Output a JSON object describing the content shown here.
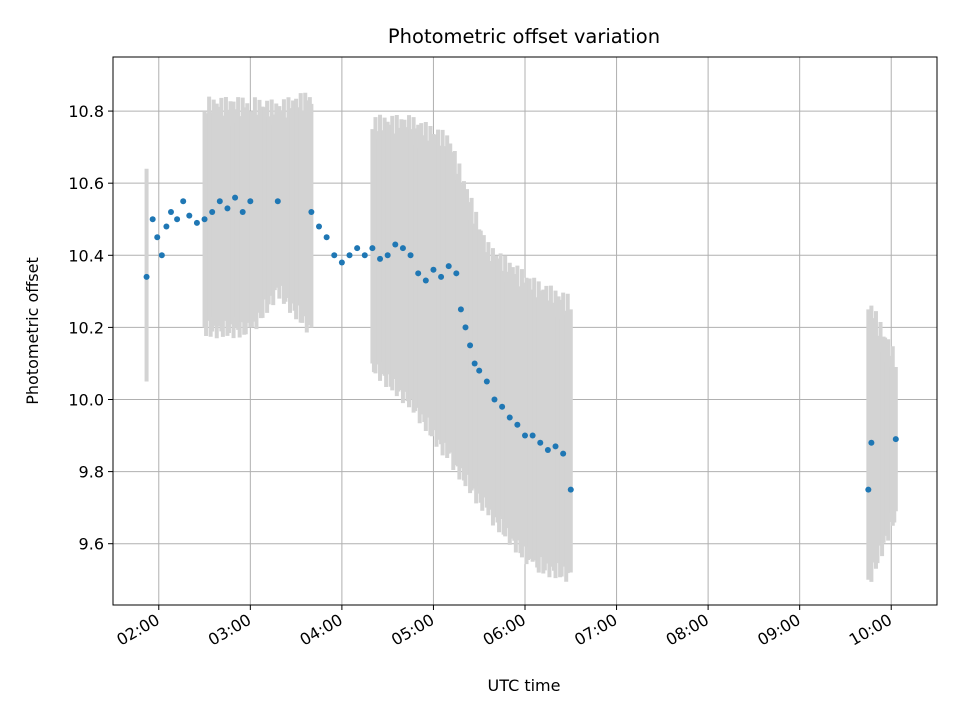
{
  "chart_data": {
    "type": "scatter",
    "title": "Photometric offset variation",
    "xlabel": "UTC time",
    "ylabel": "Photometric offset",
    "x_ticks": [
      "02:00",
      "03:00",
      "04:00",
      "05:00",
      "06:00",
      "07:00",
      "08:00",
      "09:00",
      "10:00"
    ],
    "y_ticks": [
      "9.6",
      "9.8",
      "10.0",
      "10.2",
      "10.4",
      "10.6",
      "10.8"
    ],
    "xlim": [
      "01:30",
      "10:30"
    ],
    "ylim": [
      9.43,
      10.95
    ],
    "grid": true,
    "colors": {
      "points": "#1f77b4",
      "errorbars": "#d3d3d3",
      "grid": "#b0b0b0"
    },
    "series": [
      {
        "error_segments": [
          [
            "01:52",
            10.05,
            10.64
          ],
          [
            "02:30",
            10.2,
            10.8
          ],
          [
            "03:00",
            10.2,
            10.8
          ],
          [
            "03:18",
            10.31,
            10.79
          ],
          [
            "03:40",
            10.2,
            10.82
          ],
          [
            "04:20",
            10.1,
            10.75
          ],
          [
            "04:45",
            10.0,
            10.75
          ],
          [
            "05:10",
            9.85,
            10.7
          ],
          [
            "05:35",
            9.7,
            10.4
          ],
          [
            "06:05",
            9.55,
            10.3
          ],
          [
            "06:30",
            9.52,
            10.25
          ],
          [
            "09:45",
            9.5,
            10.25
          ],
          [
            "10:03",
            9.69,
            10.09
          ]
        ],
        "points": [
          [
            "01:52",
            10.34
          ],
          [
            "01:56",
            10.5
          ],
          [
            "01:59",
            10.45
          ],
          [
            "02:02",
            10.4
          ],
          [
            "02:05",
            10.48
          ],
          [
            "02:08",
            10.52
          ],
          [
            "02:12",
            10.5
          ],
          [
            "02:16",
            10.55
          ],
          [
            "02:20",
            10.51
          ],
          [
            "02:25",
            10.49
          ],
          [
            "02:30",
            10.5
          ],
          [
            "02:35",
            10.52
          ],
          [
            "02:40",
            10.55
          ],
          [
            "02:45",
            10.53
          ],
          [
            "02:50",
            10.56
          ],
          [
            "02:55",
            10.52
          ],
          [
            "03:00",
            10.55
          ],
          [
            "03:18",
            10.55
          ],
          [
            "03:40",
            10.52
          ],
          [
            "03:45",
            10.48
          ],
          [
            "03:50",
            10.45
          ],
          [
            "03:55",
            10.4
          ],
          [
            "04:00",
            10.38
          ],
          [
            "04:05",
            10.4
          ],
          [
            "04:10",
            10.42
          ],
          [
            "04:15",
            10.4
          ],
          [
            "04:20",
            10.42
          ],
          [
            "04:25",
            10.39
          ],
          [
            "04:30",
            10.4
          ],
          [
            "04:35",
            10.43
          ],
          [
            "04:40",
            10.42
          ],
          [
            "04:45",
            10.4
          ],
          [
            "04:50",
            10.35
          ],
          [
            "04:55",
            10.33
          ],
          [
            "05:00",
            10.36
          ],
          [
            "05:05",
            10.34
          ],
          [
            "05:10",
            10.37
          ],
          [
            "05:15",
            10.35
          ],
          [
            "05:18",
            10.25
          ],
          [
            "05:21",
            10.2
          ],
          [
            "05:24",
            10.15
          ],
          [
            "05:27",
            10.1
          ],
          [
            "05:30",
            10.08
          ],
          [
            "05:35",
            10.05
          ],
          [
            "05:40",
            10.0
          ],
          [
            "05:45",
            9.98
          ],
          [
            "05:50",
            9.95
          ],
          [
            "05:55",
            9.93
          ],
          [
            "06:00",
            9.9
          ],
          [
            "06:05",
            9.9
          ],
          [
            "06:10",
            9.88
          ],
          [
            "06:15",
            9.86
          ],
          [
            "06:20",
            9.87
          ],
          [
            "06:25",
            9.85
          ],
          [
            "06:30",
            9.75
          ],
          [
            "09:45",
            9.75
          ],
          [
            "09:47",
            9.88
          ],
          [
            "10:03",
            9.89
          ]
        ]
      }
    ]
  }
}
